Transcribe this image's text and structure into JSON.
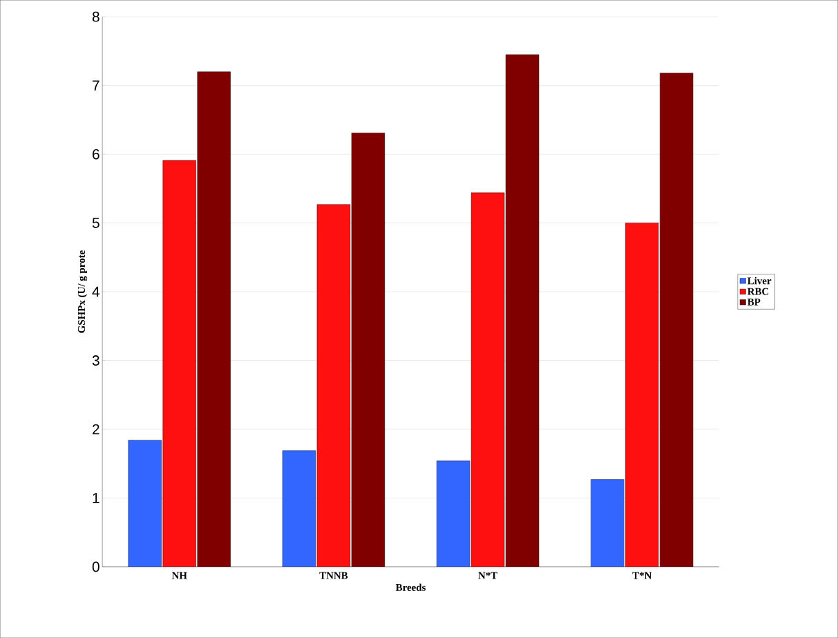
{
  "chart_data": {
    "type": "bar",
    "xlabel": "Breeds",
    "ylabel": "GSHPx (U/ g prote",
    "categories": [
      "NH",
      "TNNB",
      "N*T",
      "T*N"
    ],
    "series": [
      {
        "name": "Liver",
        "color": "#3366ff",
        "values": [
          1.84,
          1.69,
          1.54,
          1.27
        ]
      },
      {
        "name": "RBC",
        "color": "#ff1010",
        "values": [
          5.91,
          5.27,
          5.44,
          5.0
        ]
      },
      {
        "name": "BP",
        "color": "#800000",
        "values": [
          7.2,
          6.31,
          7.45,
          7.18
        ]
      }
    ],
    "ylim": [
      0,
      8
    ],
    "yticks": [
      0,
      1,
      2,
      3,
      4,
      5,
      6,
      7,
      8
    ],
    "grid": "y",
    "legend": "right"
  }
}
